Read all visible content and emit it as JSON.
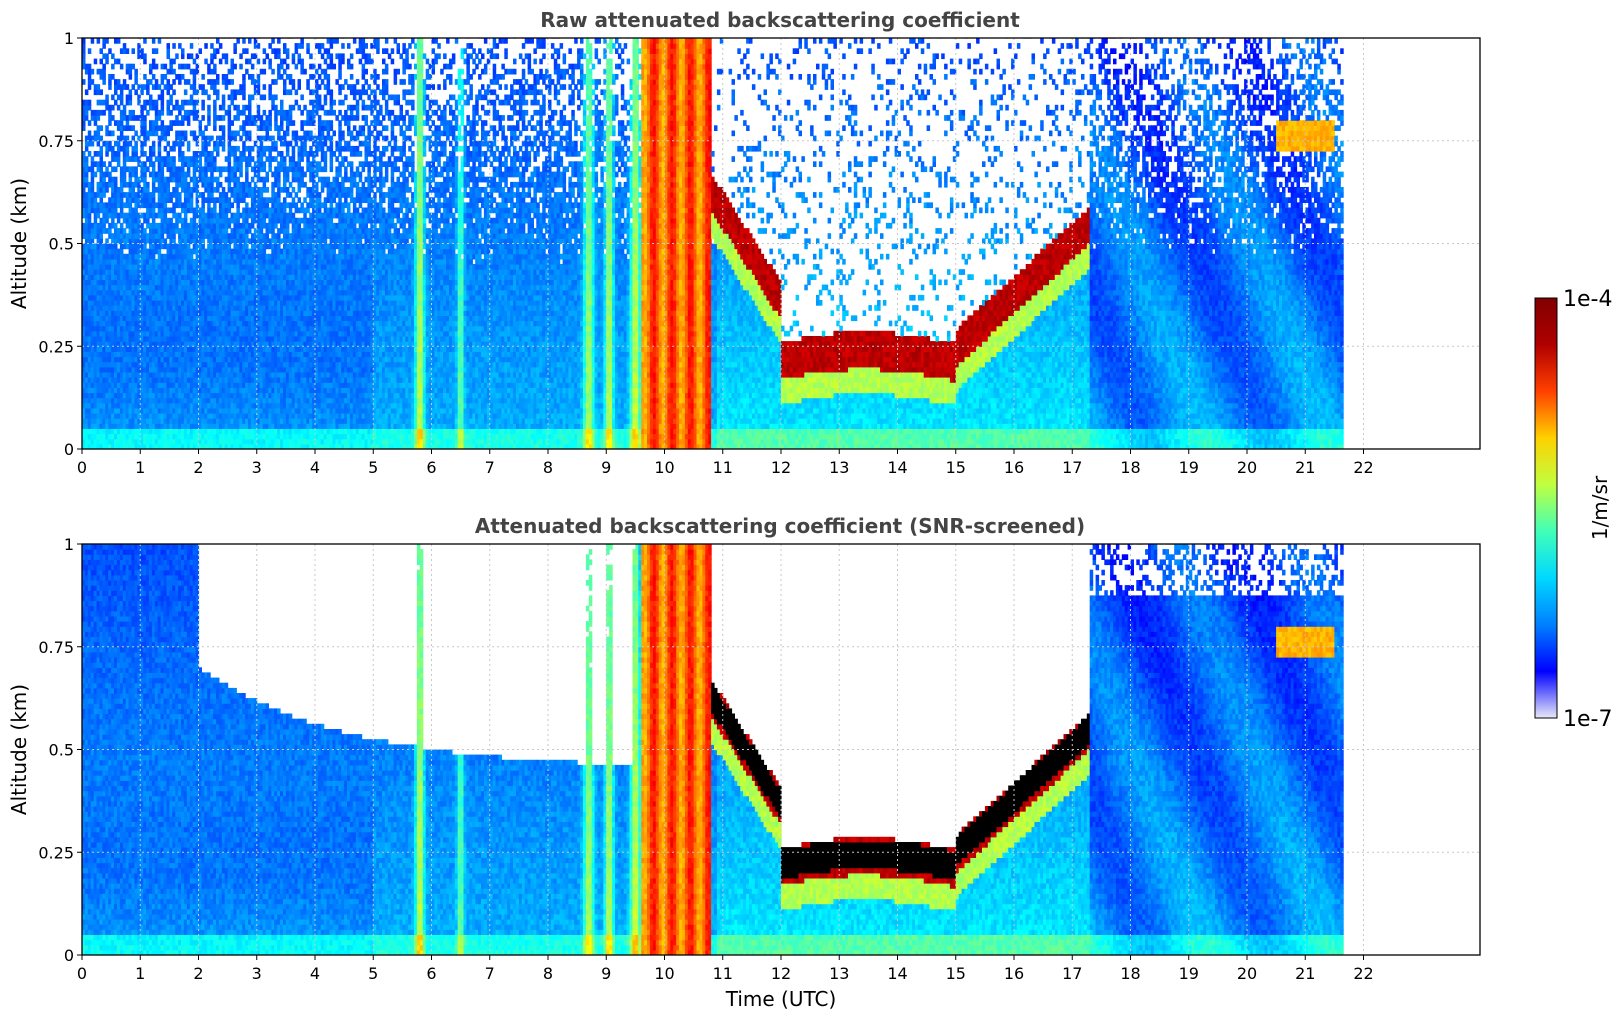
{
  "chart_data": [
    {
      "type": "heatmap",
      "title": "Raw attenuated backscattering coefficient",
      "xlabel": "",
      "ylabel": "Altitude (km)",
      "xlim": [
        0,
        24
      ],
      "ylim": [
        0,
        1
      ],
      "xticks": [
        0,
        1,
        2,
        3,
        4,
        5,
        6,
        7,
        8,
        9,
        10,
        11,
        12,
        13,
        14,
        15,
        16,
        17,
        18,
        19,
        20,
        21,
        22
      ],
      "yticks": [
        0,
        0.25,
        0.5,
        0.75,
        1
      ],
      "ytick_labels": [
        "0",
        "0.25",
        "0.5",
        "0.75",
        "1"
      ],
      "grid": true,
      "data_end_time": 21.65
    },
    {
      "type": "heatmap",
      "title": "Attenuated backscattering coefficient (SNR-screened)",
      "xlabel": "Time (UTC)",
      "ylabel": "Altitude (km)",
      "xlim": [
        0,
        24
      ],
      "ylim": [
        0,
        1
      ],
      "xticks": [
        0,
        1,
        2,
        3,
        4,
        5,
        6,
        7,
        8,
        9,
        10,
        11,
        12,
        13,
        14,
        15,
        16,
        17,
        18,
        19,
        20,
        21,
        22
      ],
      "yticks": [
        0,
        0.25,
        0.5,
        0.75,
        1
      ],
      "ytick_labels": [
        "0",
        "0.25",
        "0.5",
        "0.75",
        "1"
      ],
      "grid": true,
      "data_end_time": 21.65
    }
  ],
  "colorbar": {
    "label": "1/m/sr",
    "max_label": "1e-4",
    "min_label": "1e-7",
    "scale": "log",
    "colormap": "jet",
    "colors": [
      "#e8e8f8",
      "#0000ff",
      "#0080ff",
      "#00d8ff",
      "#40ffb8",
      "#c0ff40",
      "#ffd000",
      "#ff4000",
      "#b00000",
      "#800000"
    ]
  }
}
